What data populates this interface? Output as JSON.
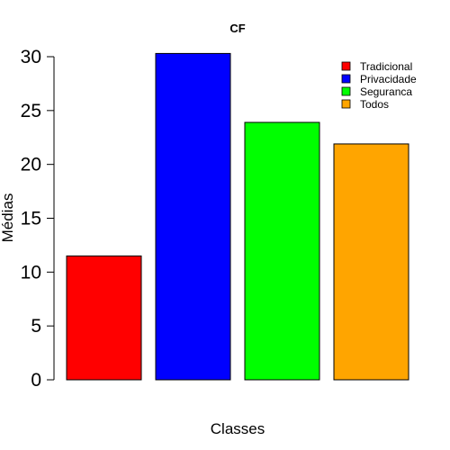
{
  "chart_data": {
    "type": "bar",
    "title": "CF",
    "xlabel": "Classes",
    "ylabel": "Médias",
    "categories": [
      "Tradicional",
      "Privacidade",
      "Seguranca",
      "Todos"
    ],
    "values": [
      11.5,
      30.3,
      23.9,
      21.9
    ],
    "colors": [
      "#ff0000",
      "#0000ff",
      "#00ff00",
      "#ffa500"
    ],
    "yticks": [
      0,
      5,
      10,
      15,
      20,
      25,
      30
    ],
    "ylim": [
      0,
      30
    ],
    "legend": {
      "position": "top-right",
      "entries": [
        "Tradicional",
        "Privacidade",
        "Seguranca",
        "Todos"
      ]
    },
    "grid": false
  }
}
